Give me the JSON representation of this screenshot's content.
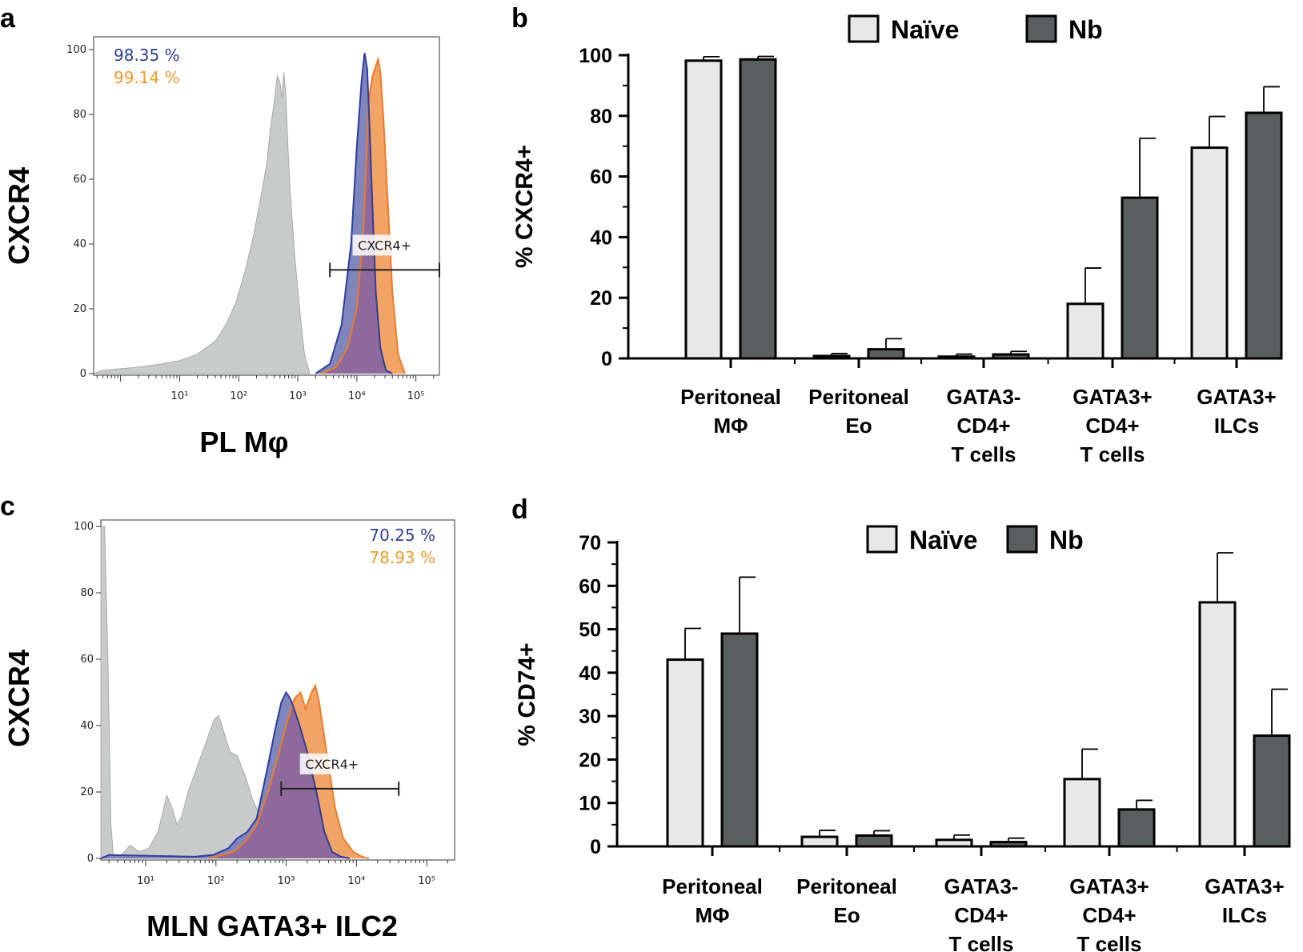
{
  "panels": {
    "a": "a",
    "b": "b",
    "c": "c",
    "d": "d"
  },
  "colors": {
    "naive": "#e8e8e8",
    "nb": "#5b5e5f",
    "control_hist": "#c9cbcb",
    "blue_hist": "#7f86bd",
    "blue_line": "#2c3d9e",
    "orange_hist": "#f2a366",
    "orange_line": "#f07a25",
    "overlap": "#8d6a9b",
    "blue_text": "#2b3f9c",
    "orange_text": "#f29a2e"
  },
  "chart_data": [
    {
      "panel": "a",
      "type": "histogram",
      "ylabel": "CXCR4",
      "xlabel": "PL Mφ",
      "yticks": [
        "0",
        "20",
        "40",
        "60",
        "80",
        "100"
      ],
      "xticks": [
        "10¹",
        "10²",
        "10³",
        "10⁴",
        "10⁵"
      ],
      "xscale": "log",
      "xlim": [
        0.35,
        250000
      ],
      "ylim": [
        0,
        100
      ],
      "percent_blue": "98.35 %",
      "percent_orange": "99.14 %",
      "gate_label": "CXCR4+",
      "gate_range": [
        3500,
        250000
      ],
      "gate_y": 32,
      "series": [
        {
          "name": "control",
          "x": [
            0.35,
            0.5,
            1,
            2,
            5,
            10,
            20,
            40,
            60,
            90,
            130,
            180,
            240,
            300,
            340,
            400,
            450,
            500,
            540,
            580,
            630,
            680,
            750,
            900,
            1100,
            1300,
            1600
          ],
          "y": [
            0,
            1,
            1.5,
            2,
            3,
            4,
            6,
            10,
            15,
            22,
            32,
            43,
            55,
            65,
            75,
            84,
            92,
            90,
            85,
            93,
            86,
            70,
            55,
            35,
            18,
            6,
            0
          ]
        },
        {
          "name": "blue",
          "x": [
            2000,
            3500,
            5500,
            8000,
            10000,
            12000,
            13500,
            15000,
            16500,
            18500,
            21000,
            25000,
            31000,
            40000
          ],
          "y": [
            0,
            3,
            15,
            40,
            70,
            90,
            99,
            94,
            75,
            50,
            25,
            8,
            1,
            0
          ]
        },
        {
          "name": "orange",
          "x": [
            2500,
            4500,
            7000,
            10000,
            13000,
            16000,
            18500,
            21000,
            23000,
            25000,
            28000,
            33000,
            40000,
            50000,
            65000
          ],
          "y": [
            0,
            2,
            8,
            20,
            45,
            85,
            92,
            95,
            97,
            93,
            80,
            55,
            25,
            6,
            0
          ]
        }
      ]
    },
    {
      "panel": "b",
      "type": "bar",
      "ylabel": "% CXCR4+",
      "ylim": [
        0,
        100
      ],
      "yticks": [
        "0",
        "20",
        "40",
        "60",
        "80",
        "100"
      ],
      "legend": [
        "Naïve",
        "Nb"
      ],
      "categories": [
        [
          "Peritoneal",
          "MΦ"
        ],
        [
          "Peritoneal",
          "Eo"
        ],
        [
          "GATA3-",
          "CD4+",
          "T cells"
        ],
        [
          "GATA3+",
          "CD4+",
          "T cells"
        ],
        [
          "GATA3+",
          "ILCs"
        ]
      ],
      "series": [
        {
          "name": "Naïve",
          "values": [
            98.2,
            0.8,
            0.6,
            18,
            69.5
          ],
          "errors": [
            1.3,
            0.8,
            0.8,
            11.8,
            10.3
          ]
        },
        {
          "name": "Nb",
          "values": [
            98.6,
            3,
            1.3,
            53,
            81
          ],
          "errors": [
            1,
            3.5,
            1,
            19.6,
            8.6
          ]
        }
      ]
    },
    {
      "panel": "c",
      "type": "histogram",
      "ylabel": "CXCR4",
      "xlabel": "MLN GATA3+ ILC2",
      "yticks": [
        "0",
        "20",
        "40",
        "60",
        "80",
        "100"
      ],
      "xticks": [
        "10¹",
        "10²",
        "10³",
        "10⁴",
        "10⁵"
      ],
      "xscale": "log",
      "xlim": [
        2.3,
        250000
      ],
      "ylim": [
        0,
        100
      ],
      "percent_blue": "70.25 %",
      "percent_orange": "78.93 %",
      "gate_label": "CXCR4+",
      "gate_range": [
        850,
        40000
      ],
      "gate_y": 21,
      "series": [
        {
          "name": "control",
          "x": [
            2.3,
            2.6,
            2.9,
            3.2,
            3.5,
            4.5,
            6,
            8,
            11,
            15,
            20,
            24,
            28,
            33,
            40,
            55,
            75,
            95,
            110,
            130,
            160,
            200,
            260,
            330,
            420,
            520,
            650,
            800,
            950
          ],
          "y": [
            100,
            100,
            60,
            10,
            0,
            1,
            4,
            2,
            3,
            8,
            19,
            15,
            10,
            13,
            20,
            28,
            36,
            42,
            43,
            38,
            32,
            31,
            25,
            18,
            13,
            8,
            4,
            2,
            0
          ]
        },
        {
          "name": "blue",
          "x": [
            2.3,
            3,
            50,
            90,
            150,
            200,
            280,
            380,
            550,
            700,
            850,
            1000,
            1150,
            1300,
            1550,
            2000,
            2700,
            3500,
            4500,
            6000,
            8000
          ],
          "y": [
            0,
            1,
            0.5,
            1,
            3,
            6,
            8,
            12,
            28,
            39,
            47,
            50,
            48,
            45,
            40,
            32,
            20,
            8,
            2,
            0.5,
            0
          ]
        },
        {
          "name": "orange",
          "x": [
            80,
            120,
            180,
            260,
            380,
            550,
            750,
            1000,
            1300,
            1600,
            1900,
            2300,
            2600,
            2900,
            3300,
            4000,
            5000,
            6500,
            9000,
            12000,
            15000
          ],
          "y": [
            0,
            1,
            2,
            5,
            10,
            20,
            30,
            40,
            48,
            50,
            45,
            50,
            52,
            48,
            40,
            28,
            15,
            6,
            2,
            0.5,
            0
          ]
        }
      ]
    },
    {
      "panel": "d",
      "type": "bar",
      "ylabel": "% CD74+",
      "ylim": [
        0,
        70
      ],
      "yticks": [
        "0",
        "10",
        "20",
        "30",
        "40",
        "50",
        "60",
        "70"
      ],
      "legend": [
        "Naïve",
        "Nb"
      ],
      "categories": [
        [
          "Peritoneal",
          "MΦ"
        ],
        [
          "Peritoneal",
          "Eo"
        ],
        [
          "GATA3-",
          "CD4+",
          "T cells"
        ],
        [
          "GATA3+",
          "CD4+",
          "T cells"
        ],
        [
          "GATA3+",
          "ILCs"
        ]
      ],
      "series": [
        {
          "name": "Naïve",
          "values": [
            43,
            2.2,
            1.5,
            15.5,
            56.2
          ],
          "errors": [
            7.2,
            1.5,
            1.1,
            6.9,
            11.4
          ]
        },
        {
          "name": "Nb",
          "values": [
            49,
            2.5,
            1,
            8.5,
            25.5
          ],
          "errors": [
            13,
            1.1,
            0.9,
            2.1,
            10.7
          ]
        }
      ]
    }
  ]
}
